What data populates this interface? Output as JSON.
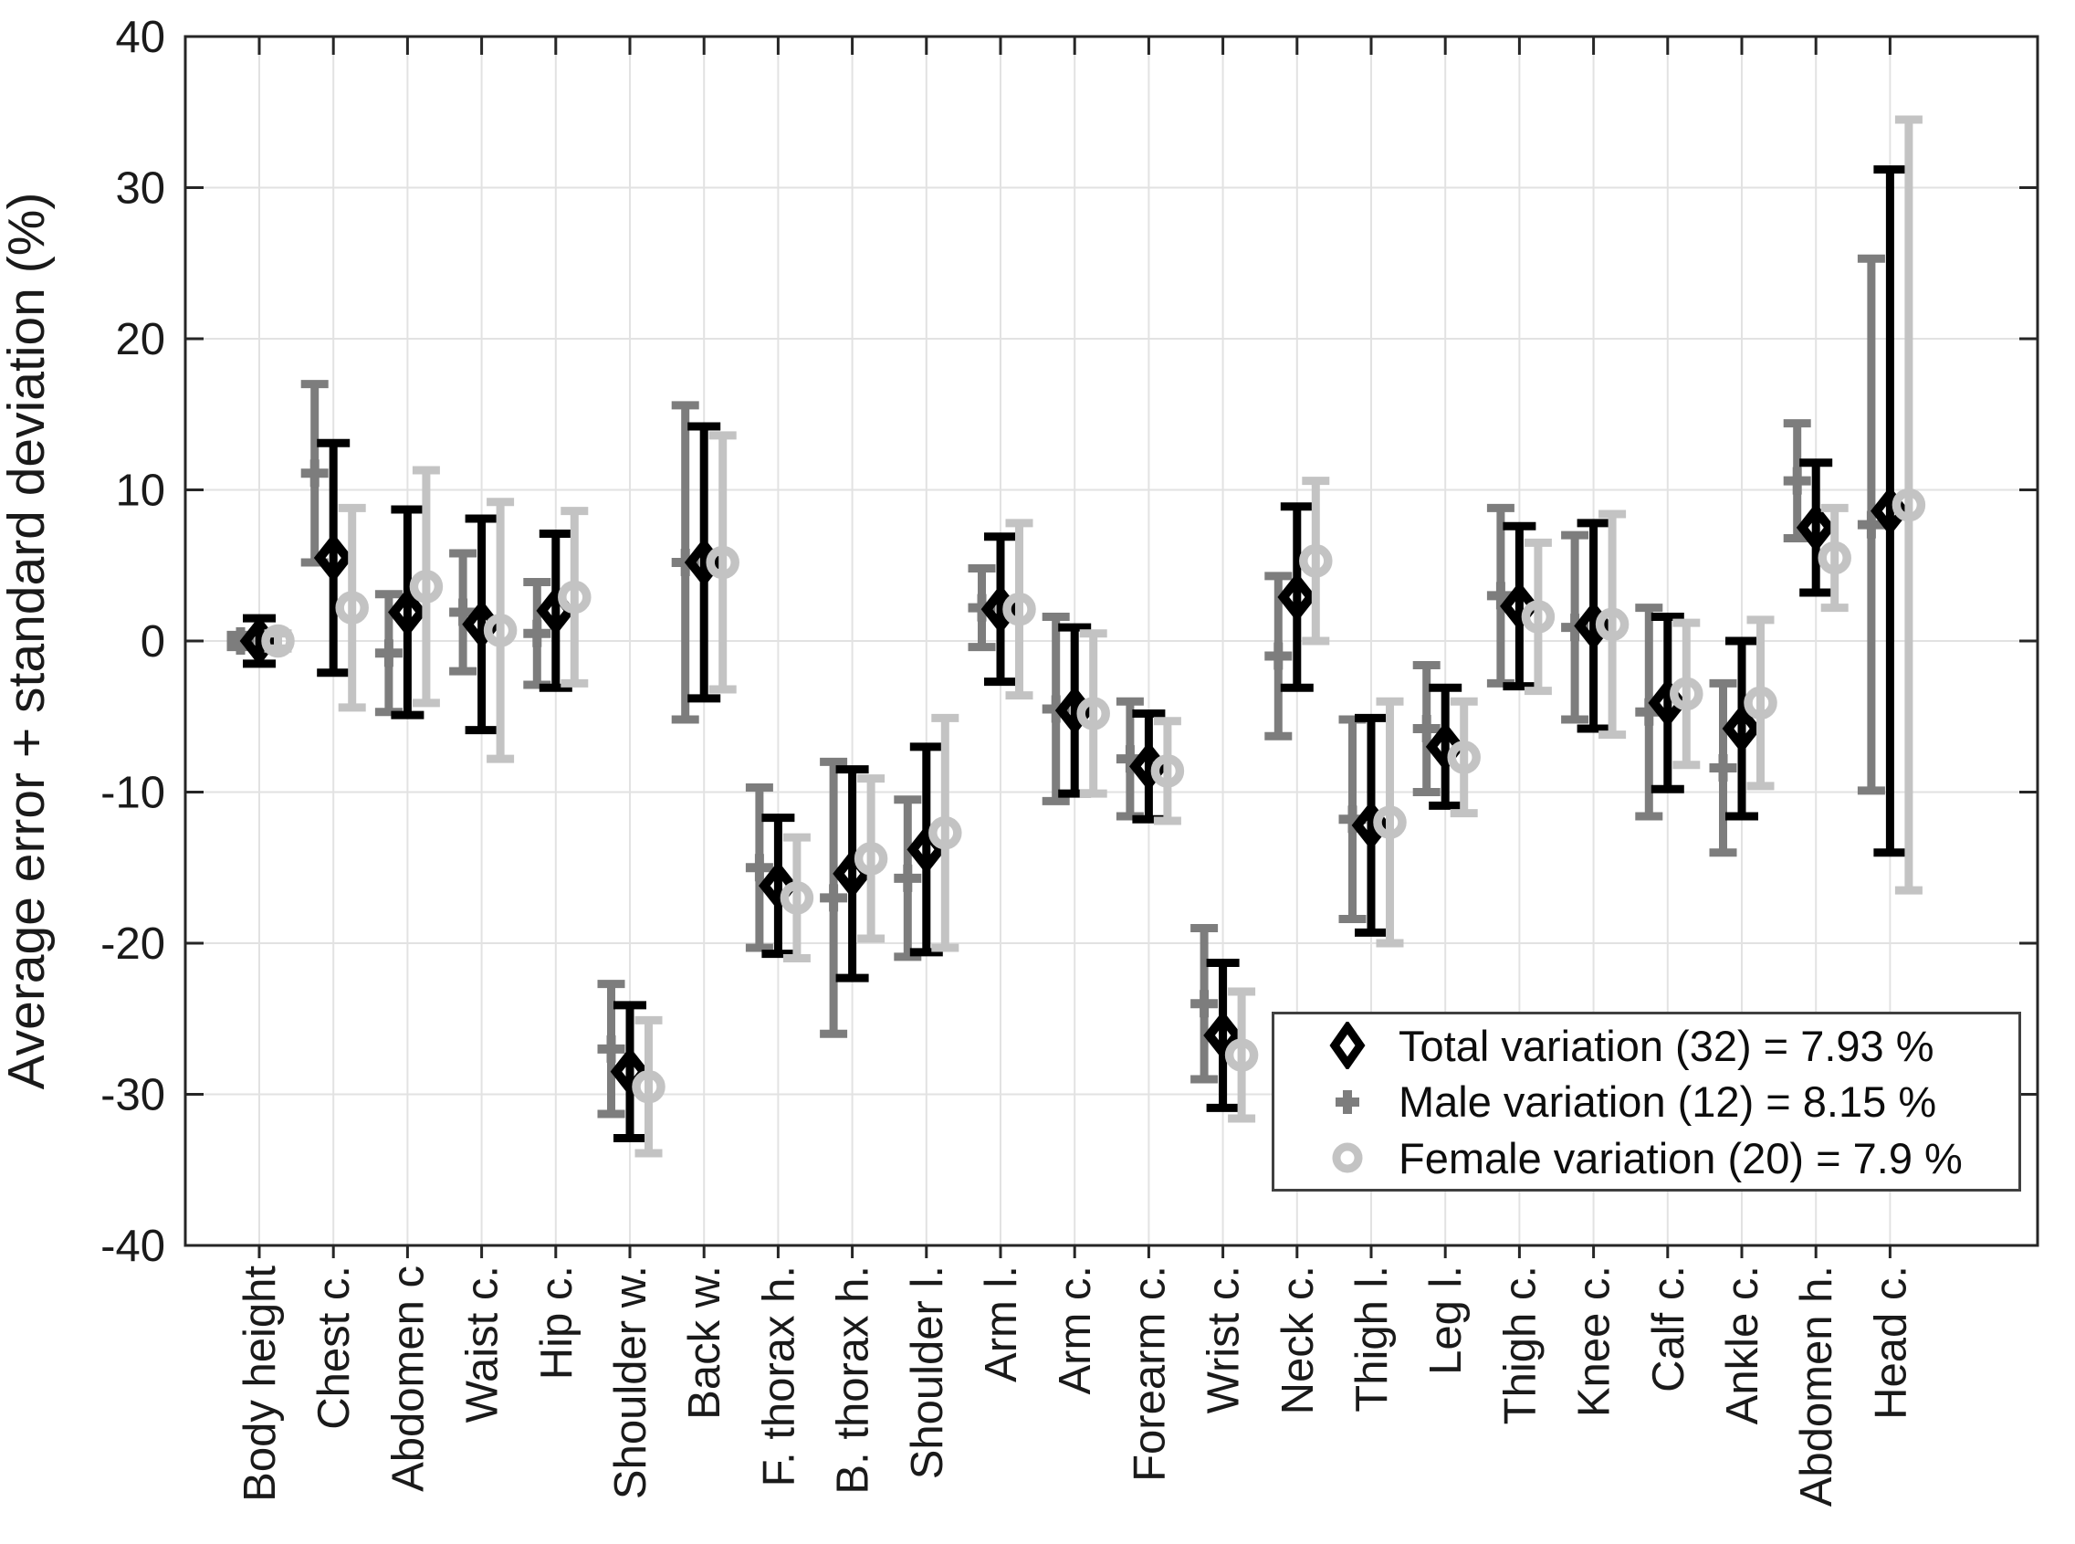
{
  "chart_data": {
    "type": "errorbar",
    "title": "",
    "xlabel": "",
    "ylabel": "Average error + standard deviation (%)",
    "ylim": [
      -40,
      40
    ],
    "y_ticks": [
      -40,
      -30,
      -20,
      -10,
      0,
      10,
      20,
      30,
      40
    ],
    "grid": true,
    "x_tick_rotation": 90,
    "legend_position": "lower-right",
    "categories": [
      "Body height",
      "Chest c.",
      "Abdomen c",
      "Waist c.",
      "Hip c.",
      "Shoulder w.",
      "Back w.",
      "F. thorax h.",
      "B. thorax h.",
      "Shoulder l.",
      "Arm l.",
      "Arm c.",
      "Forearm c.",
      "Wrist c.",
      "Neck c.",
      "Thigh l.",
      "Leg l.",
      "Thigh c.",
      "Knee c.",
      "Calf c.",
      "Ankle c.",
      "Abdomen h.",
      "Head c."
    ],
    "series": [
      {
        "name": "Total variation (32) = 7.93 %",
        "marker": "diamond",
        "color": "#000000",
        "means": [
          0.0,
          5.5,
          1.9,
          1.1,
          2.0,
          -28.5,
          5.2,
          -16.2,
          -15.4,
          -13.8,
          2.1,
          -4.6,
          -8.3,
          -26.1,
          2.9,
          -12.2,
          -7.0,
          2.3,
          1.0,
          -4.1,
          -5.8,
          7.5,
          8.6
        ],
        "errors": [
          1.5,
          7.6,
          6.8,
          7.0,
          5.1,
          4.4,
          9.0,
          4.5,
          6.9,
          6.8,
          4.8,
          5.5,
          3.5,
          4.8,
          6.0,
          7.1,
          3.9,
          5.3,
          6.8,
          5.7,
          5.8,
          4.3,
          22.6
        ]
      },
      {
        "name": "Male variation (12) = 8.15 %",
        "marker": "plus",
        "color": "#7d7d7d",
        "means": [
          0.0,
          11.1,
          -0.8,
          1.9,
          0.5,
          -27.0,
          5.2,
          -15.0,
          -17.0,
          -15.7,
          2.2,
          -4.5,
          -7.8,
          -24.0,
          -1.0,
          -11.8,
          -5.8,
          3.0,
          0.9,
          -4.7,
          -8.4,
          10.6,
          7.7
        ],
        "errors": [
          0.4,
          5.9,
          3.9,
          3.9,
          3.4,
          4.3,
          10.4,
          5.3,
          9.0,
          5.2,
          2.6,
          6.1,
          3.8,
          5.0,
          5.3,
          6.6,
          4.2,
          5.8,
          6.1,
          6.9,
          5.6,
          3.8,
          17.6
        ]
      },
      {
        "name": "Female variation (20) = 7.9 %",
        "marker": "circle",
        "color": "#c3c3c3",
        "means": [
          0.0,
          2.2,
          3.6,
          0.7,
          2.9,
          -29.5,
          5.2,
          -17.0,
          -14.4,
          -12.7,
          2.1,
          -4.8,
          -8.6,
          -27.4,
          5.3,
          -12.0,
          -7.7,
          1.6,
          1.1,
          -3.5,
          -4.1,
          5.5,
          9.0
        ],
        "errors": [
          0.5,
          6.6,
          7.7,
          8.5,
          5.7,
          4.4,
          8.4,
          4.0,
          5.3,
          7.6,
          5.7,
          5.3,
          3.3,
          4.2,
          5.3,
          8.0,
          3.7,
          4.9,
          7.3,
          4.7,
          5.5,
          3.3,
          25.5
        ]
      }
    ]
  }
}
